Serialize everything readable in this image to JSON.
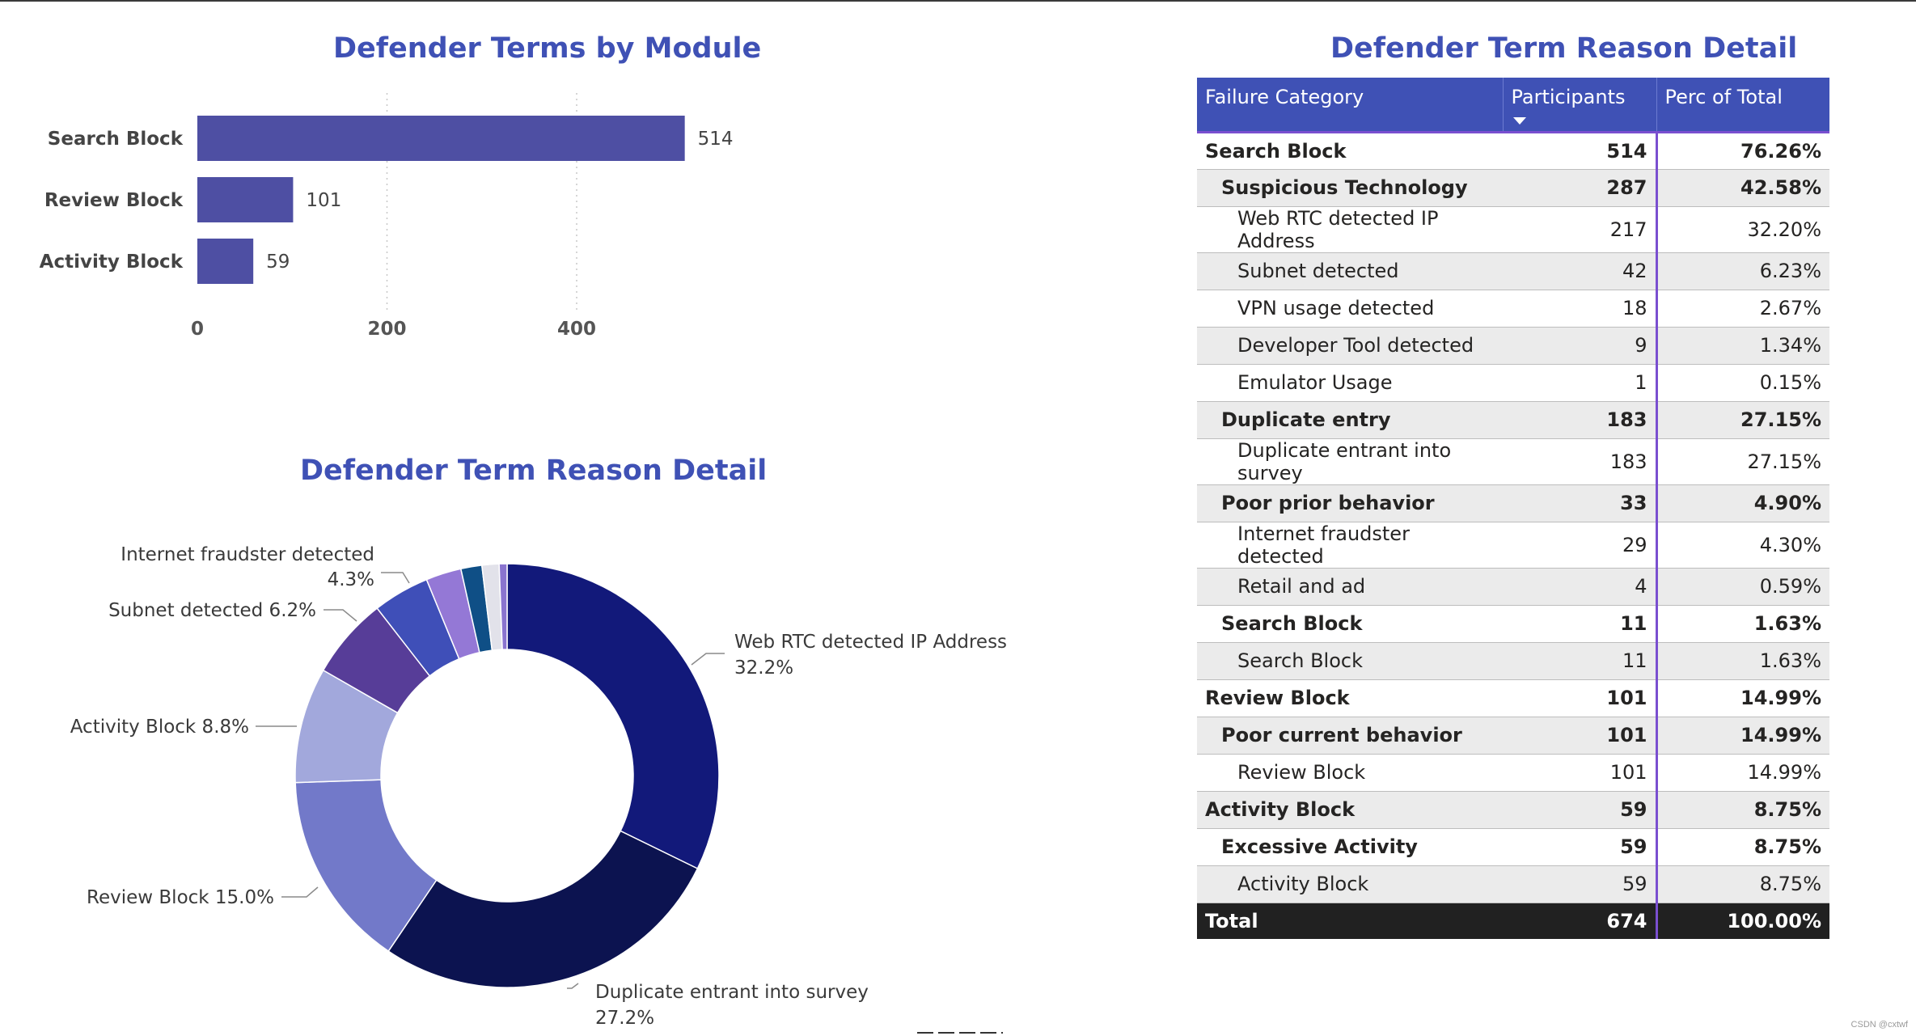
{
  "charts": {
    "bar": {
      "title": "Defender Terms by Module",
      "ticks": [
        "0",
        "200",
        "400"
      ]
    },
    "pie": {
      "title": "Defender Term Reason Detail",
      "labels": [
        {
          "line1": "Web RTC detected IP Address",
          "line2": "32.2%"
        },
        {
          "line1": "Duplicate entrant into survey",
          "line2": "27.2%"
        },
        {
          "line1": "Review Block 15.0%",
          "line2": ""
        },
        {
          "line1": "Activity Block 8.8%",
          "line2": ""
        },
        {
          "line1": "Subnet detected 6.2%",
          "line2": ""
        },
        {
          "line1": "Internet fraudster detected",
          "line2": "4.3%"
        }
      ]
    }
  },
  "chart_data": [
    {
      "type": "bar",
      "orientation": "horizontal",
      "title": "Defender Terms by Module",
      "categories": [
        "Search Block",
        "Review Block",
        "Activity Block"
      ],
      "values": [
        514,
        101,
        59
      ],
      "xlim": [
        0,
        560
      ],
      "xticks": [
        0,
        200,
        400
      ],
      "grid": true,
      "color": "#4e4fa3"
    },
    {
      "type": "pie",
      "donut": true,
      "title": "Defender Term Reason Detail",
      "slices": [
        {
          "name": "Web RTC detected IP Address",
          "value": 32.2,
          "color": "#12197a"
        },
        {
          "name": "Duplicate entrant into survey",
          "value": 27.2,
          "color": "#0c1350"
        },
        {
          "name": "Review Block",
          "value": 15.0,
          "color": "#7279c9"
        },
        {
          "name": "Activity Block",
          "value": 8.8,
          "color": "#a2a8dc"
        },
        {
          "name": "Subnet detected",
          "value": 6.2,
          "color": "#573d98"
        },
        {
          "name": "Internet fraudster detected",
          "value": 4.3,
          "color": "#3f4fb8"
        },
        {
          "name": "",
          "value": 2.7,
          "color": "#9478d6"
        },
        {
          "name": "",
          "value": 1.6,
          "color": "#0f4f86"
        },
        {
          "name": "",
          "value": 1.3,
          "color": "#e2e2ea"
        },
        {
          "name": "",
          "value": 0.6,
          "color": "#8a74cf"
        }
      ]
    },
    {
      "type": "table",
      "title": "Defender Term Reason Detail",
      "columns": [
        "Failure Category",
        "Participants",
        "Perc of Total"
      ],
      "sorted_column": "Participants",
      "rows": [
        {
          "level": 0,
          "label": "Search Block",
          "participants": "514",
          "perc": "76.26%"
        },
        {
          "level": 1,
          "label": "Suspicious Technology",
          "participants": "287",
          "perc": "42.58%"
        },
        {
          "level": 2,
          "label": "Web RTC detected IP Address",
          "participants": "217",
          "perc": "32.20%"
        },
        {
          "level": 2,
          "label": "Subnet detected",
          "participants": "42",
          "perc": "6.23%"
        },
        {
          "level": 2,
          "label": "VPN usage detected",
          "participants": "18",
          "perc": "2.67%"
        },
        {
          "level": 2,
          "label": "Developer Tool detected",
          "participants": "9",
          "perc": "1.34%"
        },
        {
          "level": 2,
          "label": "Emulator Usage",
          "participants": "1",
          "perc": "0.15%"
        },
        {
          "level": 1,
          "label": "Duplicate entry",
          "participants": "183",
          "perc": "27.15%"
        },
        {
          "level": 2,
          "label": "Duplicate entrant into survey",
          "participants": "183",
          "perc": "27.15%"
        },
        {
          "level": 1,
          "label": "Poor prior behavior",
          "participants": "33",
          "perc": "4.90%"
        },
        {
          "level": 2,
          "label": "Internet fraudster detected",
          "participants": "29",
          "perc": "4.30%"
        },
        {
          "level": 2,
          "label": "Retail and ad",
          "participants": "4",
          "perc": "0.59%"
        },
        {
          "level": 1,
          "label": "Search Block",
          "participants": "11",
          "perc": "1.63%"
        },
        {
          "level": 2,
          "label": "Search Block",
          "participants": "11",
          "perc": "1.63%"
        },
        {
          "level": 0,
          "label": "Review Block",
          "participants": "101",
          "perc": "14.99%"
        },
        {
          "level": 1,
          "label": "Poor current behavior",
          "participants": "101",
          "perc": "14.99%"
        },
        {
          "level": 2,
          "label": "Review Block",
          "participants": "101",
          "perc": "14.99%"
        },
        {
          "level": 0,
          "label": "Activity Block",
          "participants": "59",
          "perc": "8.75%"
        },
        {
          "level": 1,
          "label": "Excessive Activity",
          "participants": "59",
          "perc": "8.75%"
        },
        {
          "level": 2,
          "label": "Activity Block",
          "participants": "59",
          "perc": "8.75%"
        }
      ],
      "total": {
        "label": "Total",
        "participants": "674",
        "perc": "100.00%"
      }
    }
  ],
  "watermark": "CSDN @cxtwf"
}
